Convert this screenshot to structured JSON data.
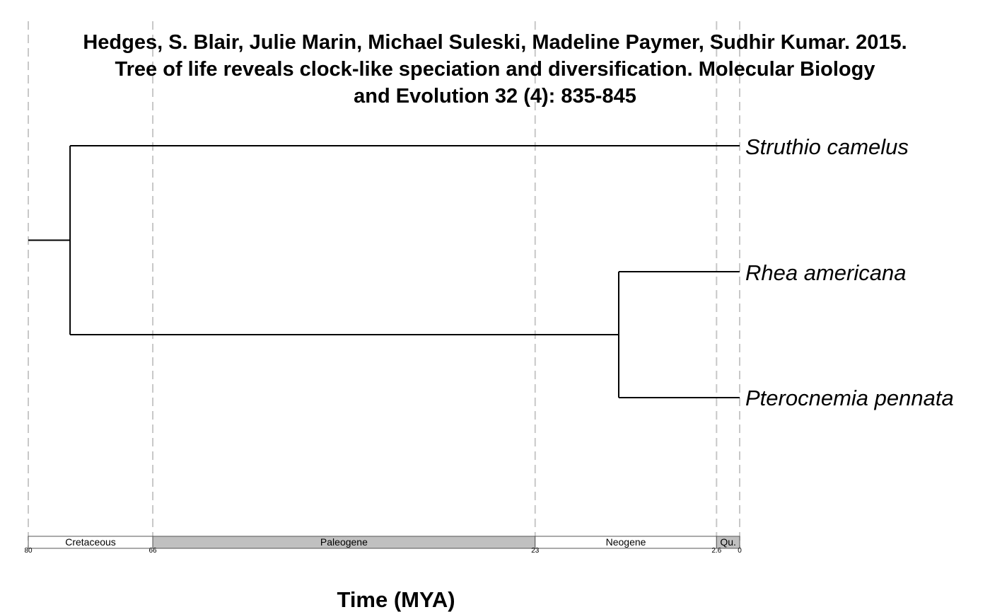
{
  "title_lines": [
    "Hedges, S. Blair, Julie Marin, Michael Suleski, Madeline Paymer, Sudhir Kumar. 2015.",
    "Tree of life reveals clock-like speciation and diversification. Molecular Biology",
    "and Evolution 32 (4): 835-845"
  ],
  "axis_title": "Time (MYA)",
  "tips": [
    "Struthio camelus",
    "Rhea americana",
    "Pterocnemia pennata"
  ],
  "nodes": {
    "root_stem_start_mya": 80,
    "root_mya": 75.3,
    "rhea_pterocnemia_mya": 13.6
  },
  "gridlines_mya": [
    80,
    66,
    23,
    2.6,
    0
  ],
  "periods": [
    {
      "name": "Cretaceous",
      "start": 80,
      "end": 66,
      "color": "#ffffff"
    },
    {
      "name": "Paleogene",
      "start": 66,
      "end": 23,
      "color": "#c0c0c0"
    },
    {
      "name": "Neogene",
      "start": 23,
      "end": 2.6,
      "color": "#ffffff"
    },
    {
      "name": "Qu.",
      "start": 2.6,
      "end": 0,
      "color": "#c0c0c0"
    }
  ],
  "ticks": [
    "80",
    "66",
    "23",
    "2.6",
    "0"
  ],
  "colors": {
    "branch": "#000000",
    "grid": "#c8c8c8",
    "shaded_period": "#c0c0c0"
  }
}
